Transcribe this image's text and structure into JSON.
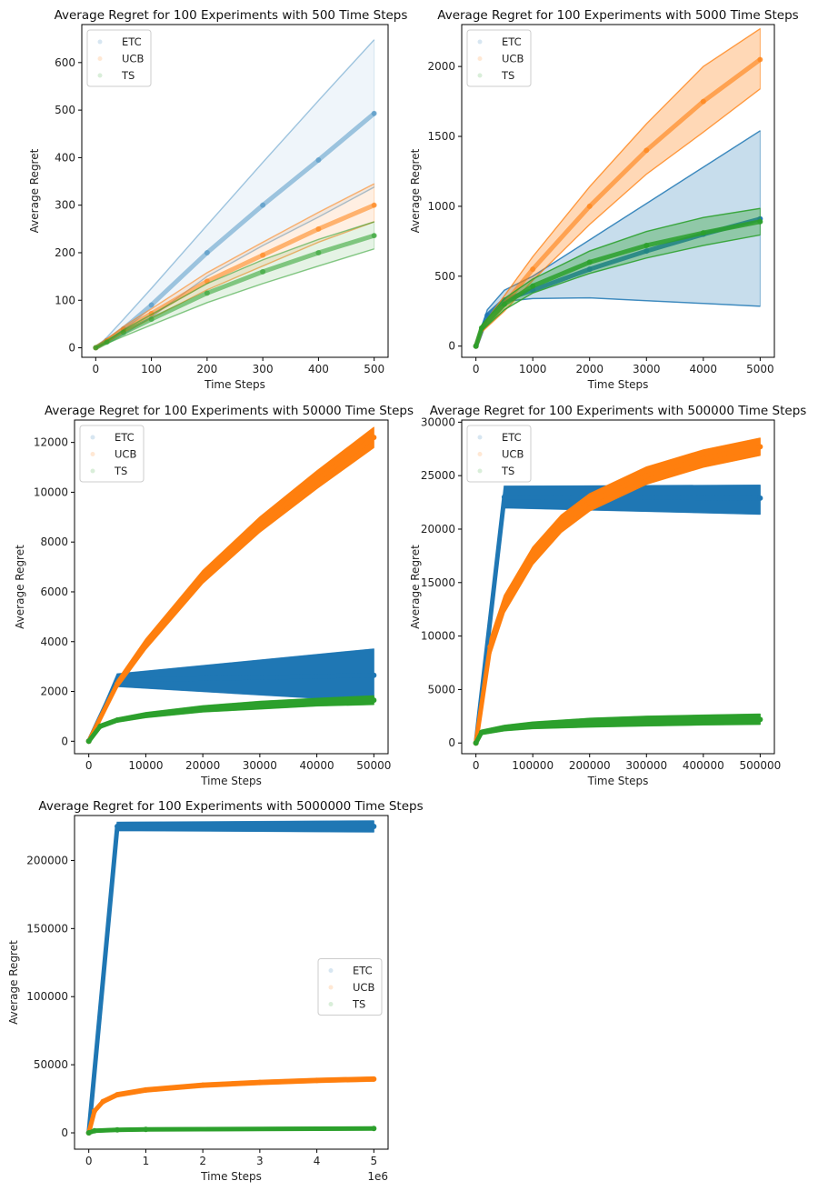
{
  "colors": {
    "ETC": "#1f77b4",
    "UCB": "#ff7f0e",
    "TS": "#2ca02c"
  },
  "chart_data": [
    {
      "type": "line",
      "title": "Average Regret for 100 Experiments with 500 Time Steps",
      "xlabel": "Time Steps",
      "ylabel": "Average Regret",
      "xlim": [
        -25,
        525
      ],
      "ylim": [
        -20,
        680
      ],
      "xticks": [
        0,
        100,
        200,
        300,
        400,
        500
      ],
      "xtick_labels": [
        "0",
        "100",
        "200",
        "300",
        "400",
        "500"
      ],
      "yticks": [
        0,
        100,
        200,
        300,
        400,
        500,
        600
      ],
      "ytick_labels": [
        "0",
        "100",
        "200",
        "300",
        "400",
        "500",
        "600"
      ],
      "legend": {
        "position": "top-left",
        "entries": [
          "ETC",
          "UCB",
          "TS"
        ]
      },
      "series": [
        {
          "name": "ETC",
          "band_alpha": 0.07,
          "line_alpha": 0.4,
          "x": [
            0,
            20,
            50,
            100,
            200,
            300,
            400,
            500
          ],
          "y": [
            0,
            15,
            40,
            90,
            200,
            300,
            395,
            493
          ],
          "upper": [
            0,
            22,
            60,
            125,
            258,
            390,
            520,
            648
          ],
          "lower": [
            0,
            10,
            28,
            65,
            150,
            215,
            275,
            338
          ]
        },
        {
          "name": "UCB",
          "band_alpha": 0.12,
          "line_alpha": 0.55,
          "x": [
            0,
            20,
            50,
            100,
            200,
            300,
            400,
            500
          ],
          "y": [
            0,
            15,
            38,
            72,
            140,
            195,
            250,
            300
          ],
          "upper": [
            0,
            18,
            45,
            82,
            158,
            222,
            285,
            345
          ],
          "lower": [
            0,
            12,
            32,
            62,
            122,
            172,
            222,
            265
          ]
        },
        {
          "name": "TS",
          "band_alpha": 0.12,
          "line_alpha": 0.55,
          "x": [
            0,
            20,
            50,
            100,
            200,
            300,
            400,
            500
          ],
          "y": [
            0,
            12,
            32,
            60,
            115,
            160,
            200,
            236
          ],
          "upper": [
            0,
            14,
            38,
            70,
            135,
            185,
            228,
            265
          ],
          "lower": [
            0,
            9,
            24,
            48,
            95,
            135,
            172,
            208
          ]
        }
      ]
    },
    {
      "type": "line",
      "title": "Average Regret for 100 Experiments with 5000 Time Steps",
      "xlabel": "Time Steps",
      "ylabel": "Average Regret",
      "xlim": [
        -250,
        5250
      ],
      "ylim": [
        -80,
        2300
      ],
      "xticks": [
        0,
        1000,
        2000,
        3000,
        4000,
        5000
      ],
      "xtick_labels": [
        "0",
        "1000",
        "2000",
        "3000",
        "4000",
        "5000"
      ],
      "yticks": [
        0,
        500,
        1000,
        1500,
        2000
      ],
      "ytick_labels": [
        "0",
        "500",
        "1000",
        "1500",
        "2000"
      ],
      "legend": {
        "position": "top-left",
        "entries": [
          "ETC",
          "UCB",
          "TS"
        ]
      },
      "series": [
        {
          "name": "ETC",
          "band_alpha": 0.25,
          "line_alpha": 0.9,
          "x": [
            0,
            200,
            500,
            1000,
            2000,
            3000,
            4000,
            5000
          ],
          "y": [
            0,
            220,
            330,
            400,
            550,
            680,
            800,
            910
          ],
          "upper": [
            0,
            260,
            400,
            500,
            760,
            1020,
            1280,
            1540
          ],
          "lower": [
            0,
            200,
            320,
            340,
            345,
            325,
            305,
            285
          ]
        },
        {
          "name": "UCB",
          "band_alpha": 0.3,
          "line_alpha": 0.6,
          "x": [
            0,
            100,
            500,
            1000,
            2000,
            3000,
            4000,
            5000
          ],
          "y": [
            0,
            120,
            300,
            550,
            1000,
            1400,
            1750,
            2050
          ],
          "upper": [
            0,
            140,
            360,
            640,
            1140,
            1590,
            2000,
            2270
          ],
          "lower": [
            0,
            100,
            250,
            470,
            870,
            1230,
            1530,
            1840
          ]
        },
        {
          "name": "TS",
          "band_alpha": 0.35,
          "line_alpha": 0.85,
          "x": [
            0,
            100,
            500,
            1000,
            2000,
            3000,
            4000,
            5000
          ],
          "y": [
            0,
            130,
            300,
            430,
            600,
            720,
            810,
            890
          ],
          "upper": [
            0,
            150,
            340,
            480,
            680,
            820,
            920,
            985
          ],
          "lower": [
            0,
            110,
            260,
            380,
            520,
            630,
            720,
            795
          ]
        }
      ]
    },
    {
      "type": "line",
      "title": "Average Regret for 100 Experiments with 50000 Time Steps",
      "xlabel": "Time Steps",
      "ylabel": "Average Regret",
      "xlim": [
        -2500,
        52500
      ],
      "ylim": [
        -500,
        12900
      ],
      "xticks": [
        0,
        10000,
        20000,
        30000,
        40000,
        50000
      ],
      "xtick_labels": [
        "0",
        "10000",
        "20000",
        "30000",
        "40000",
        "50000"
      ],
      "yticks": [
        0,
        2000,
        4000,
        6000,
        8000,
        10000,
        12000
      ],
      "ytick_labels": [
        "0",
        "2000",
        "4000",
        "6000",
        "8000",
        "10000",
        "12000"
      ],
      "legend": {
        "position": "top-left",
        "entries": [
          "ETC",
          "UCB",
          "TS"
        ]
      },
      "series": [
        {
          "name": "ETC",
          "band_alpha": 1,
          "line_alpha": 1,
          "x": [
            0,
            5000,
            50000
          ],
          "y": [
            0,
            2450,
            2650
          ],
          "upper": [
            0,
            2700,
            3700
          ],
          "lower": [
            0,
            2200,
            1600
          ]
        },
        {
          "name": "UCB",
          "band_alpha": 1,
          "line_alpha": 1,
          "x": [
            0,
            5000,
            10000,
            20000,
            30000,
            40000,
            50000
          ],
          "y": [
            0,
            2300,
            3900,
            6600,
            8700,
            10500,
            12200
          ],
          "upper": [
            0,
            2450,
            4100,
            6850,
            9000,
            10850,
            12600
          ],
          "lower": [
            0,
            2150,
            3700,
            6350,
            8400,
            10150,
            11800
          ]
        },
        {
          "name": "TS",
          "band_alpha": 1,
          "line_alpha": 1,
          "x": [
            0,
            2000,
            5000,
            10000,
            20000,
            30000,
            40000,
            50000
          ],
          "y": [
            0,
            600,
            850,
            1050,
            1300,
            1450,
            1570,
            1650
          ],
          "upper": [
            0,
            680,
            930,
            1150,
            1420,
            1600,
            1720,
            1820
          ],
          "lower": [
            0,
            520,
            770,
            950,
            1180,
            1300,
            1420,
            1480
          ]
        }
      ]
    },
    {
      "type": "line",
      "title": "Average Regret for 100 Experiments with 500000 Time Steps",
      "xlabel": "Time Steps",
      "ylabel": "Average Regret",
      "xlim": [
        -25000,
        525000
      ],
      "ylim": [
        -1000,
        30200
      ],
      "xticks": [
        0,
        100000,
        200000,
        300000,
        400000,
        500000
      ],
      "xtick_labels": [
        "0",
        "100000",
        "200000",
        "300000",
        "400000",
        "500000"
      ],
      "yticks": [
        0,
        5000,
        10000,
        15000,
        20000,
        25000,
        30000
      ],
      "ytick_labels": [
        "0",
        "5000",
        "10000",
        "15000",
        "20000",
        "25000",
        "30000"
      ],
      "legend": {
        "position": "top-left",
        "entries": [
          "ETC",
          "UCB",
          "TS"
        ]
      },
      "series": [
        {
          "name": "ETC",
          "band_alpha": 1,
          "line_alpha": 1,
          "x": [
            0,
            50000,
            500000
          ],
          "y": [
            0,
            23000,
            22900
          ],
          "upper": [
            0,
            24000,
            24100
          ],
          "lower": [
            0,
            22000,
            21400
          ]
        },
        {
          "name": "UCB",
          "band_alpha": 1,
          "line_alpha": 1,
          "x": [
            0,
            25000,
            50000,
            100000,
            150000,
            200000,
            300000,
            400000,
            500000
          ],
          "y": [
            0,
            9000,
            13000,
            17500,
            20500,
            22500,
            25000,
            26600,
            27700
          ],
          "upper": [
            0,
            9800,
            13800,
            18300,
            21300,
            23300,
            25800,
            27400,
            28500
          ],
          "lower": [
            0,
            8200,
            12200,
            16700,
            19700,
            21700,
            24200,
            25800,
            26900
          ]
        },
        {
          "name": "TS",
          "band_alpha": 1,
          "line_alpha": 1,
          "x": [
            0,
            10000,
            50000,
            100000,
            200000,
            300000,
            400000,
            500000
          ],
          "y": [
            0,
            1000,
            1400,
            1650,
            1900,
            2050,
            2150,
            2200
          ],
          "upper": [
            0,
            1200,
            1650,
            1950,
            2300,
            2500,
            2600,
            2700
          ],
          "lower": [
            0,
            800,
            1150,
            1350,
            1500,
            1600,
            1700,
            1750
          ]
        }
      ]
    },
    {
      "type": "line",
      "title": "Average Regret for 100 Experiments with 5000000 Time Steps",
      "xlabel": "Time Steps",
      "ylabel": "Average Regret",
      "xlim": [
        -250000,
        5250000
      ],
      "ylim": [
        -12000,
        233000
      ],
      "xticks": [
        0,
        1000000,
        2000000,
        3000000,
        4000000,
        5000000
      ],
      "xtick_labels": [
        "0",
        "1",
        "2",
        "3",
        "4",
        "5"
      ],
      "x_offset_label": "1e6",
      "yticks": [
        0,
        50000,
        100000,
        150000,
        200000
      ],
      "ytick_labels": [
        "0",
        "50000",
        "100000",
        "150000",
        "200000"
      ],
      "legend": {
        "position": "center-right",
        "entries": [
          "ETC",
          "UCB",
          "TS"
        ]
      },
      "series": [
        {
          "name": "ETC",
          "band_alpha": 1,
          "line_alpha": 1,
          "x": [
            0,
            500000,
            5000000
          ],
          "y": [
            0,
            225000,
            225000
          ],
          "upper": [
            0,
            228000,
            229000
          ],
          "lower": [
            0,
            222000,
            221000
          ]
        },
        {
          "name": "UCB",
          "band_alpha": 1,
          "line_alpha": 1,
          "x": [
            0,
            100000,
            250000,
            500000,
            1000000,
            2000000,
            3000000,
            4000000,
            5000000
          ],
          "y": [
            0,
            16000,
            23000,
            28000,
            31500,
            35000,
            37000,
            38500,
            39500
          ],
          "upper": [
            0,
            17500,
            24500,
            29500,
            33000,
            36500,
            38500,
            40000,
            41000
          ],
          "lower": [
            0,
            14500,
            21500,
            26500,
            30000,
            33500,
            35500,
            37000,
            38000
          ]
        },
        {
          "name": "TS",
          "band_alpha": 1,
          "line_alpha": 1,
          "x": [
            0,
            100000,
            500000,
            1000000,
            5000000
          ],
          "y": [
            0,
            1500,
            2200,
            2500,
            3200
          ],
          "upper": [
            0,
            2500,
            3200,
            3500,
            4200
          ],
          "lower": [
            0,
            500,
            1200,
            1500,
            2200
          ]
        }
      ]
    }
  ]
}
